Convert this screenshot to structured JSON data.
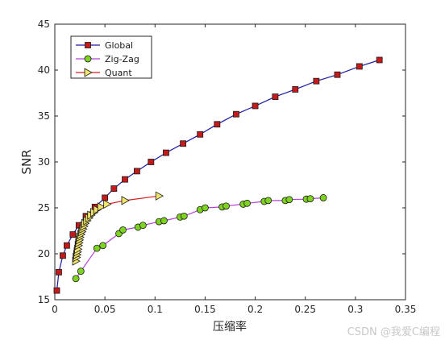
{
  "chart_data": {
    "type": "line",
    "xlabel": "压缩率",
    "ylabel": "SNR",
    "xlim": [
      0,
      0.35
    ],
    "ylim": [
      15,
      45
    ],
    "xticks": [
      "0",
      "0.05",
      "0.1",
      "0.15",
      "0.2",
      "0.25",
      "0.3",
      "0.35"
    ],
    "yticks": [
      "15",
      "20",
      "25",
      "30",
      "35",
      "40",
      "45"
    ],
    "grid": false,
    "legend_position": "top-left",
    "series": [
      {
        "name": "Global",
        "color": "#1a1aa0",
        "marker": "square",
        "marker_fill": "#c41a1a",
        "x": [
          0.002,
          0.004,
          0.008,
          0.012,
          0.018,
          0.024,
          0.031,
          0.04,
          0.05,
          0.059,
          0.07,
          0.082,
          0.096,
          0.111,
          0.128,
          0.145,
          0.162,
          0.181,
          0.2,
          0.22,
          0.24,
          0.261,
          0.282,
          0.304,
          0.324
        ],
        "y": [
          16.0,
          18.0,
          19.8,
          20.9,
          22.1,
          23.1,
          24.1,
          25.1,
          26.1,
          27.1,
          28.1,
          29.0,
          30.0,
          31.0,
          32.0,
          33.0,
          34.1,
          35.2,
          36.1,
          37.1,
          37.9,
          38.8,
          39.5,
          40.4,
          41.1
        ]
      },
      {
        "name": "Zig-Zag",
        "color": "#b440d8",
        "marker": "circle",
        "marker_fill": "#7ed321",
        "x": [
          0.021,
          0.026,
          0.042,
          0.048,
          0.064,
          0.068,
          0.083,
          0.088,
          0.104,
          0.109,
          0.125,
          0.129,
          0.145,
          0.15,
          0.167,
          0.171,
          0.188,
          0.192,
          0.209,
          0.213,
          0.23,
          0.234,
          0.251,
          0.255,
          0.268
        ],
        "y": [
          17.3,
          18.1,
          20.6,
          20.9,
          22.2,
          22.6,
          22.9,
          23.1,
          23.5,
          23.6,
          24.0,
          24.1,
          24.8,
          25.0,
          25.1,
          25.2,
          25.4,
          25.5,
          25.7,
          25.8,
          25.8,
          25.9,
          25.95,
          26.0,
          26.1
        ]
      },
      {
        "name": "Quant",
        "color": "#d42020",
        "marker": "triangle-right",
        "marker_fill": "#f0e46a",
        "x": [
          0.021,
          0.0215,
          0.022,
          0.0225,
          0.023,
          0.0235,
          0.024,
          0.0245,
          0.025,
          0.026,
          0.027,
          0.028,
          0.029,
          0.03,
          0.032,
          0.034,
          0.036,
          0.039,
          0.042,
          0.046,
          0.052,
          0.07,
          0.104
        ],
        "y": [
          19.2,
          19.6,
          19.9,
          20.2,
          20.5,
          20.9,
          21.2,
          21.5,
          21.8,
          22.1,
          22.4,
          22.7,
          23.0,
          23.3,
          23.6,
          23.9,
          24.2,
          24.5,
          24.8,
          25.1,
          25.4,
          25.8,
          26.3
        ]
      }
    ]
  },
  "watermark": "CSDN @我爱C编程"
}
